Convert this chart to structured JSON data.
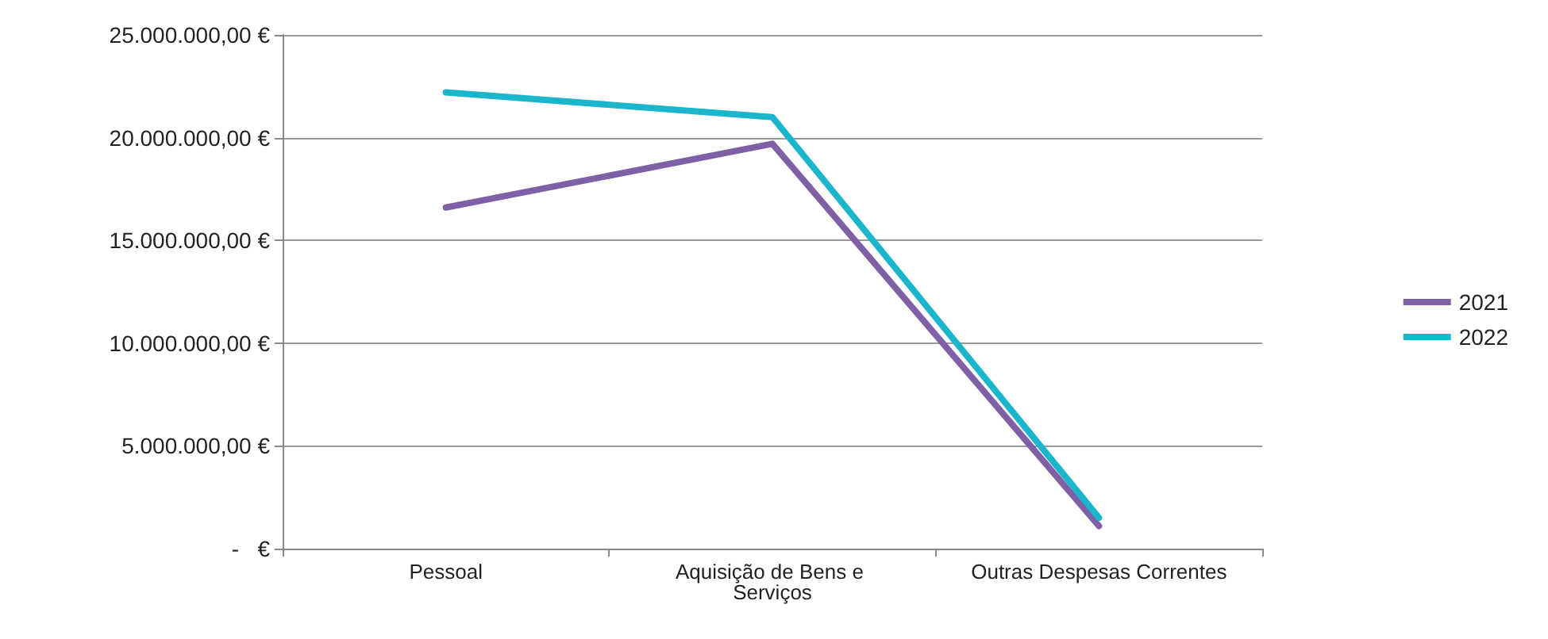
{
  "chart_data": {
    "type": "line",
    "categories": [
      "Pessoal",
      "Aquisição de Bens e Serviços",
      "Outras Despesas Correntes"
    ],
    "series": [
      {
        "name": "2021",
        "color": "#7f5fa6",
        "values": [
          16600000,
          19700000,
          1100000
        ]
      },
      {
        "name": "2022",
        "color": "#1bb6cc",
        "values": [
          22200000,
          21000000,
          1500000
        ]
      }
    ],
    "ylim": [
      0,
      25000000
    ],
    "yticks": [
      {
        "value": 0,
        "label": "-   €"
      },
      {
        "value": 5000000,
        "label": "5.000.000,00 €"
      },
      {
        "value": 10000000,
        "label": "10.000.000,00 €"
      },
      {
        "value": 15000000,
        "label": "15.000.000,00 €"
      },
      {
        "value": 20000000,
        "label": "20.000.000,00 €"
      },
      {
        "value": 25000000,
        "label": "25.000.000,00 €"
      }
    ],
    "grid": "y",
    "legend": "right",
    "marker": "none",
    "line_style": "solid"
  }
}
